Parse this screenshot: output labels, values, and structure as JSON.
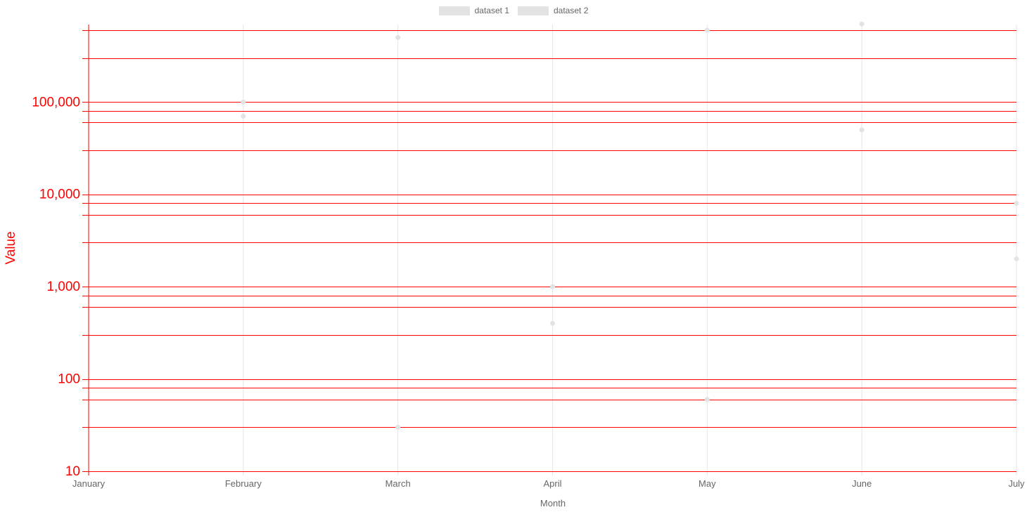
{
  "chart_data": {
    "type": "scatter",
    "xlabel": "Month",
    "ylabel": "Value",
    "categories": [
      "January",
      "February",
      "March",
      "April",
      "May",
      "June",
      "July"
    ],
    "y_scale": "log",
    "ylim": [
      10,
      700000
    ],
    "y_tick_labels": [
      "10",
      "100",
      "1,000",
      "10,000",
      "100,000"
    ],
    "y_gridlines": [
      10,
      30,
      60,
      80,
      100,
      300,
      600,
      800,
      1000,
      3000,
      6000,
      8000,
      10000,
      30000,
      60000,
      80000,
      100000,
      300000,
      600000
    ],
    "grid": true,
    "legend": "top",
    "series": [
      {
        "name": "dataset 1",
        "color": "#e3e3e3",
        "values": [
          null,
          100000,
          500000,
          1000,
          600000,
          700000,
          8000
        ]
      },
      {
        "name": "dataset 2",
        "color": "#e3e3e3",
        "values": [
          null,
          70000,
          30,
          400,
          60,
          50000,
          2000
        ]
      }
    ],
    "colors": {
      "y_axis": "#ff0000",
      "x_axis_text": "#666666",
      "x_grid": "#e6e6e6",
      "points": "#e3e3e3"
    }
  }
}
